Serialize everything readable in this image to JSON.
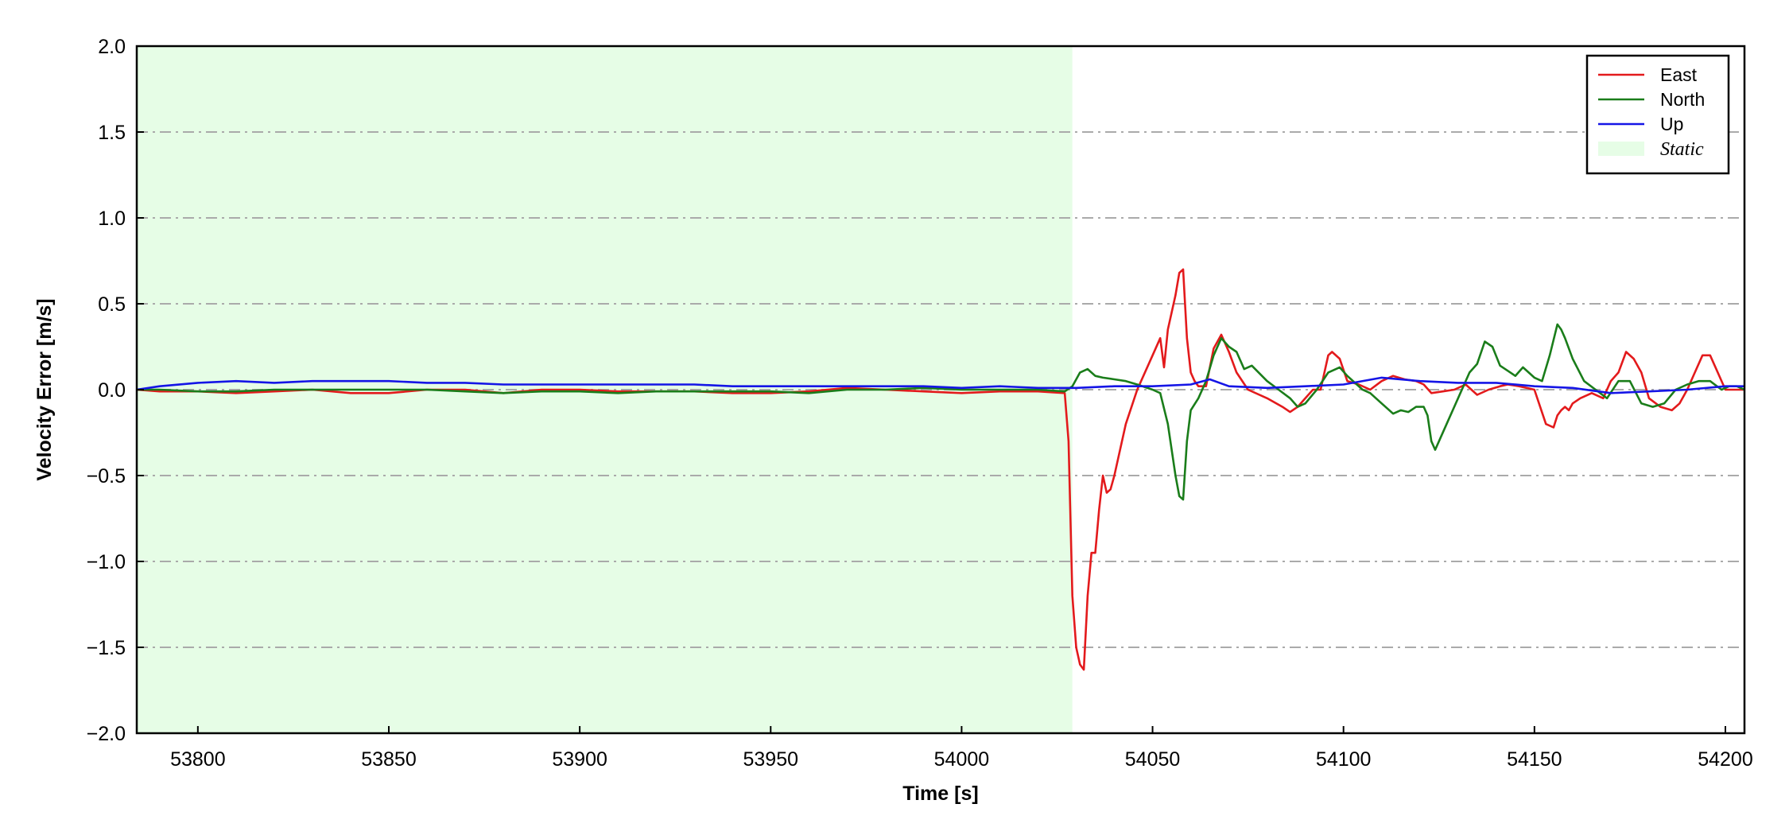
{
  "chart_data": {
    "type": "line",
    "title": "",
    "xlabel": "Time [s]",
    "ylabel": "Velocity Error [m/s]",
    "xlim": [
      53784,
      54205
    ],
    "ylim": [
      -2.0,
      2.0
    ],
    "xticks": [
      53800,
      53850,
      53900,
      53950,
      54000,
      54050,
      54100,
      54150,
      54200
    ],
    "yticks": [
      -2.0,
      -1.5,
      -1.0,
      -0.5,
      0.0,
      0.5,
      1.0,
      1.5,
      2.0
    ],
    "ytick_labels": [
      "−2.0",
      "−1.5",
      "−1.0",
      "−0.5",
      "0.0",
      "0.5",
      "1.0",
      "1.5",
      "2.0"
    ],
    "grid": "horizontal dash-dot",
    "legend_position": "top-right",
    "static_region": {
      "label": "Static",
      "x_start": 53784,
      "x_end": 54029,
      "color": "#e6fde6"
    },
    "series": [
      {
        "name": "East",
        "color": "#e31a1c",
        "x": [
          53784,
          53790,
          53800,
          53810,
          53820,
          53830,
          53840,
          53850,
          53860,
          53870,
          53880,
          53890,
          53900,
          53910,
          53920,
          53930,
          53940,
          53950,
          53960,
          53970,
          53980,
          53990,
          54000,
          54010,
          54020,
          54027,
          54028,
          54029,
          54030,
          54031,
          54032,
          54033,
          54034,
          54035,
          54036,
          54037,
          54038,
          54039,
          54040,
          54041,
          54043,
          54046,
          54050,
          54052,
          54053,
          54054,
          54056,
          54057,
          54058,
          54059,
          54060,
          54061,
          54062,
          54064,
          54066,
          54068,
          54070,
          54072,
          54075,
          54080,
          54084,
          54086,
          54088,
          54090,
          54092,
          54094,
          54096,
          54097,
          54099,
          54101,
          54104,
          54107,
          54110,
          54113,
          54116,
          54119,
          54121,
          54123,
          54126,
          54129,
          54132,
          54135,
          54138,
          54141,
          54143,
          54146,
          54150,
          54153,
          54155,
          54156,
          54157,
          54158,
          54159,
          54160,
          54162,
          54165,
          54168,
          54170,
          54172,
          54174,
          54176,
          54178,
          54180,
          54183,
          54186,
          54188,
          54190,
          54192,
          54194,
          54196,
          54198,
          54200,
          54201,
          54202,
          54205
        ],
        "y": [
          0.0,
          -0.01,
          -0.01,
          -0.02,
          -0.01,
          0.0,
          -0.02,
          -0.02,
          0.0,
          0.0,
          -0.02,
          0.0,
          0.0,
          -0.01,
          -0.01,
          -0.01,
          -0.02,
          -0.02,
          -0.01,
          0.01,
          0.0,
          -0.01,
          -0.02,
          -0.01,
          -0.01,
          -0.02,
          -0.3,
          -1.2,
          -1.5,
          -1.6,
          -1.63,
          -1.2,
          -0.95,
          -0.95,
          -0.7,
          -0.5,
          -0.6,
          -0.58,
          -0.5,
          -0.4,
          -0.2,
          0.0,
          0.2,
          0.3,
          0.13,
          0.35,
          0.55,
          0.68,
          0.7,
          0.3,
          0.1,
          0.05,
          0.02,
          0.02,
          0.24,
          0.32,
          0.22,
          0.1,
          0.0,
          -0.05,
          -0.1,
          -0.13,
          -0.1,
          -0.05,
          0.0,
          0.0,
          0.2,
          0.22,
          0.18,
          0.05,
          0.03,
          0.0,
          0.05,
          0.08,
          0.06,
          0.05,
          0.03,
          -0.02,
          -0.01,
          0.0,
          0.03,
          -0.03,
          0.0,
          0.02,
          0.03,
          0.02,
          0.0,
          -0.2,
          -0.22,
          -0.15,
          -0.12,
          -0.1,
          -0.12,
          -0.08,
          -0.05,
          -0.02,
          -0.05,
          0.05,
          0.1,
          0.22,
          0.18,
          0.1,
          -0.05,
          -0.1,
          -0.12,
          -0.08,
          0.0,
          0.1,
          0.2,
          0.2,
          0.1,
          0.0,
          0.0,
          0.0,
          0.0
        ]
      },
      {
        "name": "North",
        "color": "#1a7d1a",
        "x": [
          53784,
          53790,
          53800,
          53810,
          53820,
          53830,
          53840,
          53850,
          53860,
          53870,
          53880,
          53890,
          53900,
          53910,
          53920,
          53930,
          53940,
          53950,
          53960,
          53970,
          53980,
          53990,
          54000,
          54010,
          54020,
          54027,
          54029,
          54031,
          54033,
          54035,
          54037,
          54040,
          54043,
          54046,
          54050,
          54052,
          54054,
          54056,
          54057,
          54058,
          54059,
          54060,
          54062,
          54064,
          54066,
          54068,
          54070,
          54072,
          54074,
          54076,
          54080,
          54083,
          54086,
          54088,
          54090,
          54093,
          54096,
          54099,
          54101,
          54103,
          54105,
          54107,
          54110,
          54113,
          54115,
          54117,
          54119,
          54121,
          54122,
          54123,
          54124,
          54125,
          54127,
          54130,
          54133,
          54135,
          54137,
          54139,
          54141,
          54143,
          54145,
          54147,
          54150,
          54152,
          54154,
          54156,
          54157,
          54158,
          54160,
          54163,
          54166,
          54169,
          54172,
          54175,
          54178,
          54181,
          54184,
          54187,
          54190,
          54193,
          54196,
          54199,
          54201,
          54203,
          54205
        ],
        "y": [
          0.0,
          0.0,
          -0.01,
          -0.01,
          0.0,
          0.0,
          0.0,
          0.0,
          0.0,
          -0.01,
          -0.02,
          -0.01,
          -0.01,
          -0.02,
          -0.01,
          -0.01,
          -0.01,
          -0.01,
          -0.02,
          0.0,
          0.0,
          0.01,
          0.0,
          0.0,
          0.0,
          -0.01,
          0.02,
          0.1,
          0.12,
          0.08,
          0.07,
          0.06,
          0.05,
          0.03,
          0.0,
          -0.02,
          -0.2,
          -0.5,
          -0.62,
          -0.64,
          -0.3,
          -0.12,
          -0.05,
          0.05,
          0.2,
          0.3,
          0.25,
          0.22,
          0.12,
          0.14,
          0.05,
          0.0,
          -0.05,
          -0.1,
          -0.08,
          0.0,
          0.1,
          0.13,
          0.08,
          0.04,
          0.0,
          -0.02,
          -0.08,
          -0.14,
          -0.12,
          -0.13,
          -0.1,
          -0.1,
          -0.15,
          -0.3,
          -0.35,
          -0.3,
          -0.2,
          -0.05,
          0.1,
          0.15,
          0.28,
          0.25,
          0.14,
          0.11,
          0.08,
          0.13,
          0.07,
          0.05,
          0.2,
          0.38,
          0.35,
          0.3,
          0.18,
          0.05,
          0.0,
          -0.05,
          0.05,
          0.05,
          -0.08,
          -0.1,
          -0.08,
          0.0,
          0.03,
          0.05,
          0.05,
          0.0,
          0.02,
          0.02,
          0.0
        ]
      },
      {
        "name": "Up",
        "color": "#1515e6",
        "x": [
          53784,
          53790,
          53800,
          53810,
          53820,
          53830,
          53840,
          53850,
          53860,
          53870,
          53880,
          53890,
          53900,
          53910,
          53920,
          53930,
          53940,
          53950,
          53960,
          53970,
          53980,
          53990,
          54000,
          54010,
          54020,
          54030,
          54040,
          54050,
          54060,
          54065,
          54070,
          54080,
          54090,
          54100,
          54110,
          54120,
          54130,
          54140,
          54150,
          54160,
          54170,
          54180,
          54190,
          54200,
          54205
        ],
        "y": [
          0.0,
          0.02,
          0.04,
          0.05,
          0.04,
          0.05,
          0.05,
          0.05,
          0.04,
          0.04,
          0.03,
          0.03,
          0.03,
          0.03,
          0.03,
          0.03,
          0.02,
          0.02,
          0.02,
          0.02,
          0.02,
          0.02,
          0.01,
          0.02,
          0.01,
          0.01,
          0.02,
          0.02,
          0.03,
          0.06,
          0.02,
          0.01,
          0.02,
          0.03,
          0.07,
          0.05,
          0.04,
          0.04,
          0.02,
          0.01,
          -0.02,
          -0.01,
          0.0,
          0.02,
          0.02
        ]
      }
    ]
  }
}
